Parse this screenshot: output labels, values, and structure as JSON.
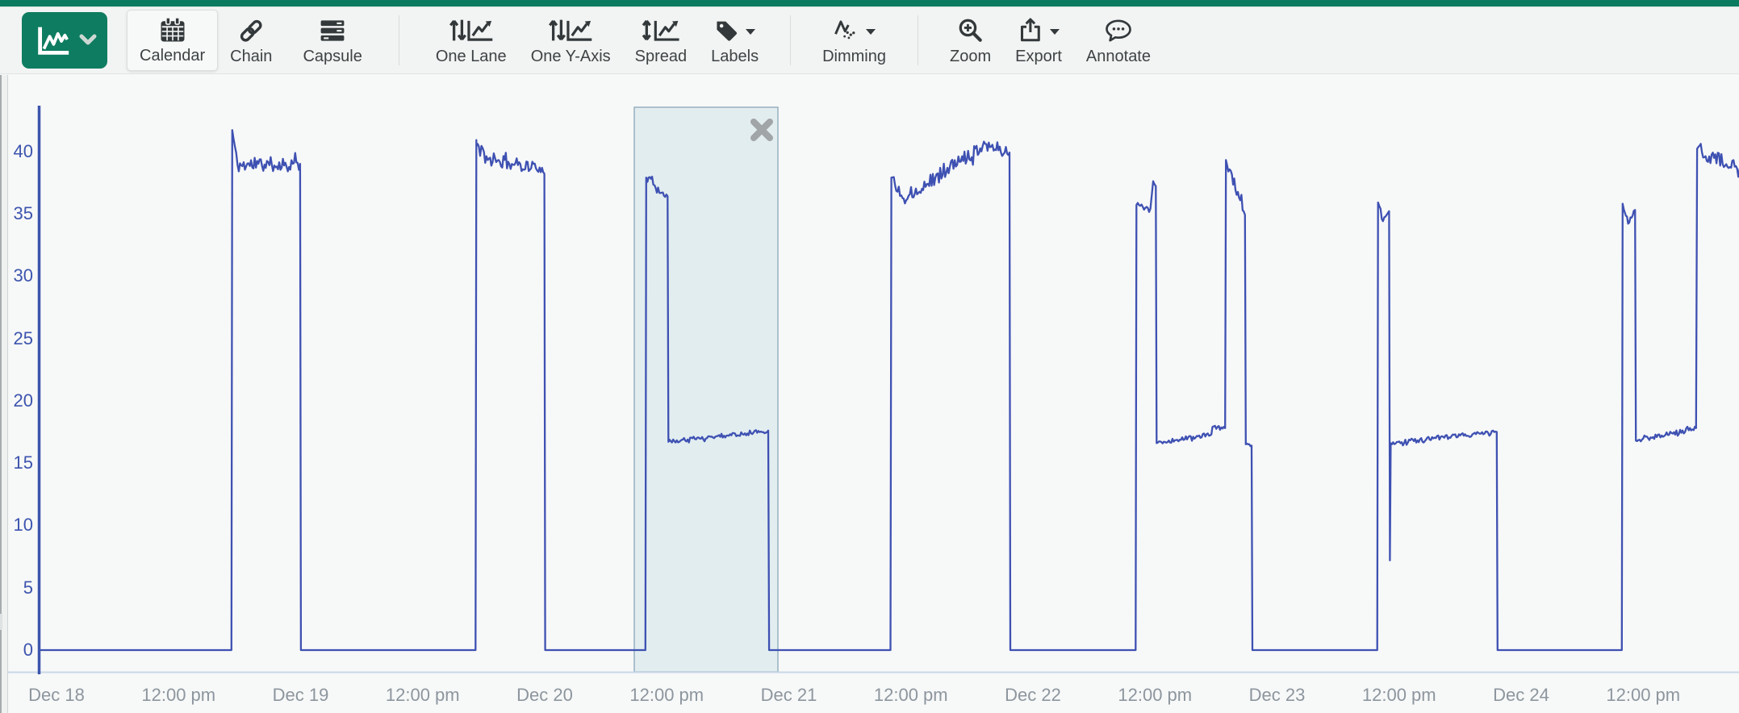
{
  "toolbar": {
    "buttons": {
      "calendar": "Calendar",
      "chain": "Chain",
      "capsule": "Capsule",
      "one_lane": "One Lane",
      "one_y_axis": "One Y-Axis",
      "spread": "Spread",
      "labels": "Labels",
      "dimming": "Dimming",
      "zoom": "Zoom",
      "export": "Export",
      "annotate": "Annotate"
    },
    "active_button": "calendar"
  },
  "icons": {
    "view_button": "trend-chart-icon",
    "view_button_chevron": "chevron-down-icon",
    "calendar": "calendar-icon",
    "chain": "chain-link-icon",
    "capsule": "capsule-rows-icon",
    "one_lane": "arrows-updown-trend-icon",
    "one_y_axis": "arrows-updown-trend-icon",
    "spread": "arrow-vertical-trend-icon",
    "labels": "tag-icon",
    "dimming": "dimmed-trend-dots-icon",
    "zoom": "magnifier-plus-icon",
    "export": "export-arrow-icon",
    "annotate": "speech-bubble-icon",
    "selection_close": "close-x-icon"
  },
  "colors": {
    "top_bar": "#0c7a5e",
    "accent_green": "#0e7c60",
    "series_line": "#3e51b2",
    "y_label": "#3c54ae",
    "x_label": "#8d969e",
    "selection_fill": "#dceaee",
    "selection_border": "#96b0bf",
    "axis_line": "#3c55ad",
    "baseline_line": "#c9d7e6",
    "plot_background": "#f7f8f8"
  },
  "chart_data": {
    "type": "line",
    "title": "",
    "xlabel": "",
    "ylabel": "",
    "grid": false,
    "legend": false,
    "x_axis": {
      "unit": "hours since Dec 18 12:00 am",
      "range_hours": [
        -1.7,
        165.6
      ],
      "ticks": [
        {
          "hour": 0,
          "label": "Dec 18"
        },
        {
          "hour": 12,
          "label": "12:00 pm"
        },
        {
          "hour": 24,
          "label": "Dec 19"
        },
        {
          "hour": 36,
          "label": "12:00 pm"
        },
        {
          "hour": 48,
          "label": "Dec 20"
        },
        {
          "hour": 60,
          "label": "12:00 pm"
        },
        {
          "hour": 72,
          "label": "Dec 21"
        },
        {
          "hour": 84,
          "label": "12:00 pm"
        },
        {
          "hour": 96,
          "label": "Dec 22"
        },
        {
          "hour": 108,
          "label": "12:00 pm"
        },
        {
          "hour": 120,
          "label": "Dec 23"
        },
        {
          "hour": 132,
          "label": "12:00 pm"
        },
        {
          "hour": 144,
          "label": "Dec 24"
        },
        {
          "hour": 156,
          "label": "12:00 pm"
        }
      ]
    },
    "y_axis": {
      "min": 0,
      "max": 43.9,
      "ticks": [
        0,
        5,
        10,
        15,
        20,
        25,
        30,
        35,
        40
      ]
    },
    "selection_region": {
      "start_hour": 56.81,
      "end_hour": 70.93,
      "close_icon": "close-x"
    },
    "series": [
      {
        "color": "#3e51b2",
        "segment_format": "[start_hour, end_hour, start_value, end_value, noise_amplitude]",
        "segments": [
          [
            -1.7,
            17.2,
            0,
            0,
            0
          ],
          [
            17.2,
            17.28,
            0,
            41.7,
            0
          ],
          [
            17.28,
            17.8,
            41.7,
            38.9,
            0.4
          ],
          [
            17.8,
            23.95,
            38.9,
            39.0,
            0.6
          ],
          [
            23.95,
            24.03,
            39.0,
            0,
            0
          ],
          [
            24.03,
            41.2,
            0,
            0,
            0
          ],
          [
            41.2,
            41.28,
            0,
            40.9,
            0
          ],
          [
            41.28,
            42.4,
            40.4,
            39.3,
            0.55
          ],
          [
            42.4,
            47.5,
            39.3,
            38.7,
            0.5
          ],
          [
            47.5,
            47.97,
            38.7,
            38.2,
            0.25
          ],
          [
            47.97,
            48.05,
            38.2,
            0,
            0
          ],
          [
            48.05,
            57.9,
            0,
            0,
            0
          ],
          [
            57.9,
            57.98,
            0,
            37.9,
            0
          ],
          [
            57.98,
            60.08,
            37.9,
            36.4,
            0.3
          ],
          [
            60.08,
            60.16,
            36.4,
            16.7,
            0
          ],
          [
            60.16,
            64.9,
            16.7,
            17.15,
            0.16
          ],
          [
            64.9,
            69.98,
            17.15,
            17.6,
            0.2
          ],
          [
            69.98,
            70.06,
            17.6,
            0,
            0
          ],
          [
            70.06,
            82.0,
            0,
            0,
            0
          ],
          [
            82.0,
            82.08,
            0,
            37.9,
            0
          ],
          [
            82.08,
            83.3,
            37.9,
            36.2,
            0.4
          ],
          [
            83.3,
            91.3,
            36.2,
            40.6,
            0.55
          ],
          [
            91.3,
            93.7,
            40.6,
            39.9,
            0.5
          ],
          [
            93.7,
            93.78,
            39.9,
            0,
            0
          ],
          [
            93.78,
            106.1,
            0,
            0,
            0
          ],
          [
            106.1,
            106.18,
            0,
            35.7,
            0
          ],
          [
            106.18,
            107.55,
            35.7,
            35.4,
            0.3
          ],
          [
            107.55,
            107.82,
            35.4,
            37.6,
            0.15
          ],
          [
            107.82,
            108.08,
            37.6,
            37.2,
            0.15
          ],
          [
            108.08,
            108.16,
            37.2,
            16.6,
            0
          ],
          [
            108.16,
            113.55,
            16.6,
            17.3,
            0.16
          ],
          [
            113.55,
            113.65,
            17.3,
            17.9,
            0
          ],
          [
            113.65,
            114.9,
            17.9,
            17.8,
            0.13
          ],
          [
            114.9,
            114.98,
            17.8,
            39.3,
            0
          ],
          [
            114.98,
            116.85,
            39.3,
            34.9,
            0.45
          ],
          [
            116.85,
            116.93,
            34.9,
            16.5,
            0
          ],
          [
            116.93,
            117.5,
            16.5,
            16.4,
            0.1
          ],
          [
            117.5,
            117.58,
            16.4,
            0,
            0
          ],
          [
            117.58,
            129.85,
            0,
            0,
            0
          ],
          [
            129.85,
            129.93,
            0,
            35.9,
            0
          ],
          [
            129.93,
            130.42,
            35.9,
            34.4,
            0.25
          ],
          [
            130.42,
            131.02,
            34.4,
            35.2,
            0.18
          ],
          [
            131.02,
            131.1,
            35.2,
            7.2,
            0
          ],
          [
            131.1,
            131.18,
            7.2,
            16.6,
            0
          ],
          [
            131.18,
            141.6,
            16.6,
            17.5,
            0.18
          ],
          [
            141.6,
            141.68,
            17.5,
            0,
            0
          ],
          [
            141.68,
            153.9,
            0,
            0,
            0
          ],
          [
            153.9,
            153.98,
            0,
            35.8,
            0
          ],
          [
            153.98,
            154.52,
            35.8,
            34.2,
            0.25
          ],
          [
            154.52,
            155.2,
            34.2,
            35.3,
            0.18
          ],
          [
            155.2,
            155.28,
            35.3,
            16.8,
            0
          ],
          [
            155.28,
            161.2,
            16.8,
            17.8,
            0.18
          ],
          [
            161.2,
            161.3,
            17.8,
            40.2,
            0
          ],
          [
            161.3,
            165.6,
            40.2,
            38.4,
            0.6
          ]
        ]
      }
    ]
  }
}
